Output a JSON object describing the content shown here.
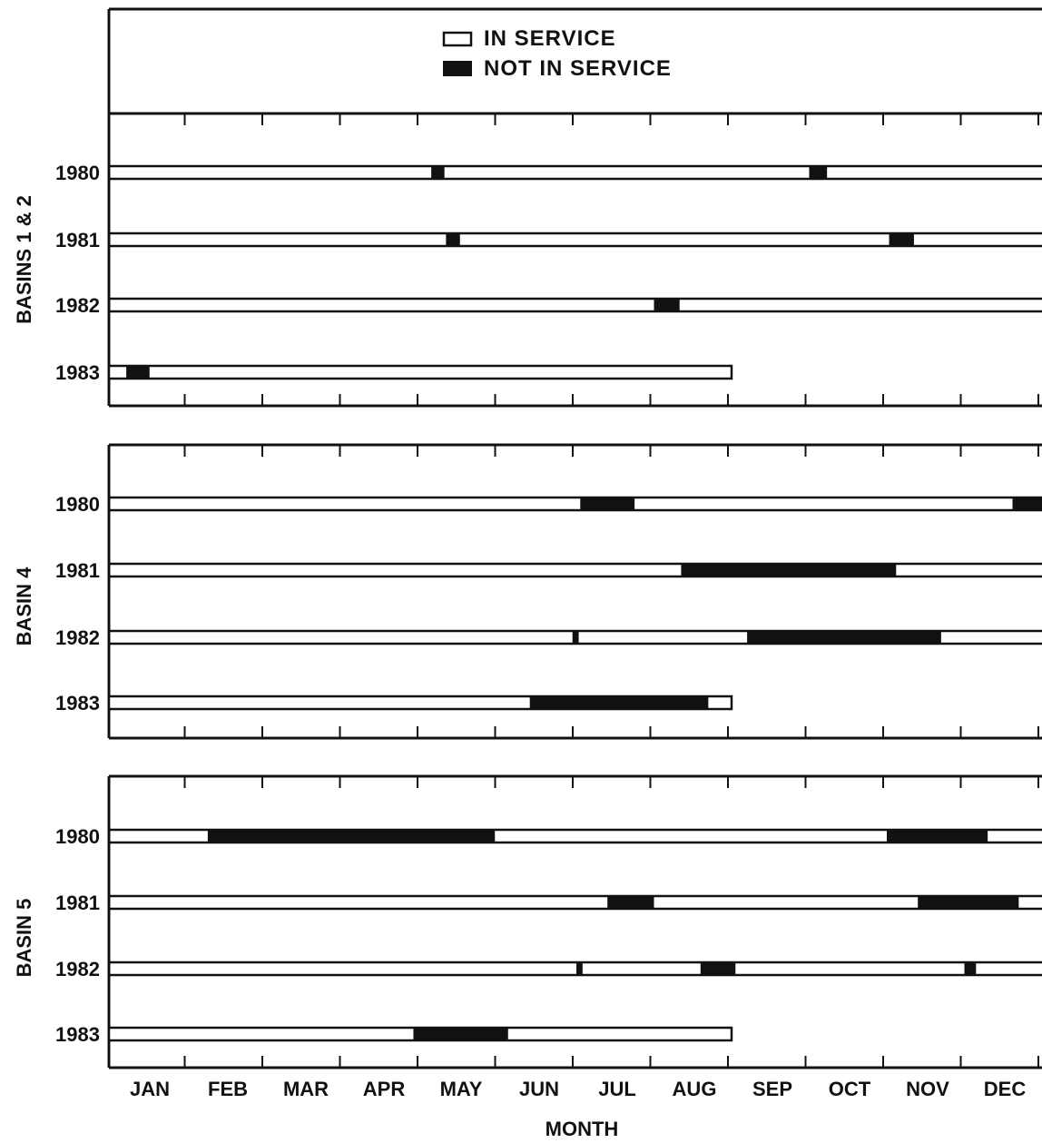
{
  "chart_data": {
    "type": "gantt",
    "title": "",
    "xlabel": "MONTH",
    "months": [
      "JAN",
      "FEB",
      "MAR",
      "APR",
      "MAY",
      "JUN",
      "JUL",
      "AUG",
      "SEP",
      "OCT",
      "NOV",
      "DEC"
    ],
    "x_range_months": [
      0,
      12
    ],
    "legend": {
      "in_service": "IN SERVICE",
      "not_in_service": "NOT IN SERVICE",
      "placement": "top-center"
    },
    "colors": {
      "in_service": "#ffffff",
      "not_in_service": "#111111",
      "stroke": "#111111"
    },
    "panels": [
      {
        "label": "BASINS 1 & 2",
        "rows": [
          {
            "year": "1980",
            "in_service_end": 12,
            "outages": [
              [
                4.13,
                4.3
              ],
              [
                9.0,
                9.23
              ]
            ]
          },
          {
            "year": "1981",
            "in_service_end": 12,
            "outages": [
              [
                4.32,
                4.5
              ],
              [
                10.03,
                10.35
              ]
            ]
          },
          {
            "year": "1982",
            "in_service_end": 12,
            "outages": [
              [
                7.0,
                7.33
              ]
            ]
          },
          {
            "year": "1983",
            "in_service_end": 8.0,
            "outages": [
              [
                0.2,
                0.5
              ]
            ]
          }
        ]
      },
      {
        "label": "BASIN 4",
        "rows": [
          {
            "year": "1980",
            "in_service_end": 12,
            "outages": [
              [
                6.05,
                6.75
              ],
              [
                11.62,
                12.0
              ]
            ]
          },
          {
            "year": "1981",
            "in_service_end": 12,
            "outages": [
              [
                7.35,
                10.12
              ]
            ]
          },
          {
            "year": "1982",
            "in_service_end": 12,
            "outages": [
              [
                5.95,
                6.03
              ],
              [
                8.2,
                10.7
              ]
            ]
          },
          {
            "year": "1983",
            "in_service_end": 8.0,
            "outages": [
              [
                5.4,
                7.7
              ]
            ]
          }
        ]
      },
      {
        "label": "BASIN 5",
        "rows": [
          {
            "year": "1980",
            "in_service_end": 12,
            "outages": [
              [
                1.25,
                4.95
              ],
              [
                10.0,
                11.3
              ]
            ]
          },
          {
            "year": "1981",
            "in_service_end": 12,
            "outages": [
              [
                6.4,
                7.0
              ],
              [
                10.4,
                11.7
              ]
            ]
          },
          {
            "year": "1982",
            "in_service_end": 12,
            "outages": [
              [
                6.0,
                6.08
              ],
              [
                7.6,
                8.05
              ],
              [
                11.0,
                11.15
              ]
            ]
          },
          {
            "year": "1983",
            "in_service_end": 8.0,
            "outages": [
              [
                3.9,
                5.12
              ]
            ]
          }
        ]
      }
    ]
  }
}
